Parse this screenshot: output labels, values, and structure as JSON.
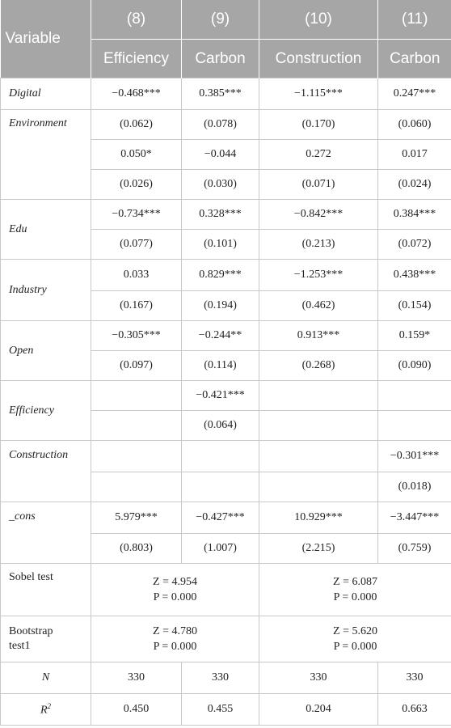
{
  "header": {
    "variable_label": "Variable",
    "cols": [
      "(8)",
      "(9)",
      "(10)",
      "(11)"
    ],
    "subcols": [
      "Efficiency",
      "Carbon",
      "Construction",
      "Carbon"
    ]
  },
  "rows": {
    "digital": {
      "name": "Digital",
      "values": [
        "−0.468***",
        "0.385***",
        "−1.115***",
        "0.247***"
      ]
    },
    "environment": {
      "name": "Environment",
      "se": [
        "(0.062)",
        "(0.078)",
        "(0.170)",
        "(0.060)"
      ],
      "values": [
        "0.050*",
        "−0.044",
        "0.272",
        "0.017"
      ],
      "se2": [
        "(0.026)",
        "(0.030)",
        "(0.071)",
        "(0.024)"
      ]
    },
    "edu": {
      "name": "Edu",
      "values": [
        "−0.734***",
        "0.328***",
        "−0.842***",
        "0.384***"
      ],
      "se": [
        "(0.077)",
        "(0.101)",
        "(0.213)",
        "(0.072)"
      ]
    },
    "industry": {
      "name": "Industry",
      "values": [
        "0.033",
        "0.829***",
        "−1.253***",
        "0.438***"
      ],
      "se": [
        "(0.167)",
        "(0.194)",
        "(0.462)",
        "(0.154)"
      ]
    },
    "open": {
      "name": "Open",
      "values": [
        "−0.305***",
        "−0.244**",
        "0.913***",
        "0.159*"
      ],
      "se": [
        "(0.097)",
        "(0.114)",
        "(0.268)",
        "(0.090)"
      ]
    },
    "efficiency": {
      "name": "Efficiency",
      "value": "−0.421***",
      "se": "(0.064)"
    },
    "construction": {
      "name": "Construction",
      "value": "−0.301***",
      "se": "(0.018)"
    },
    "cons": {
      "name": "_cons",
      "values": [
        "5.979***",
        "−0.427***",
        "10.929***",
        "−3.447***"
      ],
      "se": [
        "(0.803)",
        "(1.007)",
        "(2.215)",
        "(0.759)"
      ]
    },
    "sobel": {
      "name": "Sobel test",
      "left_z": "Z = 4.954",
      "left_p": "P = 0.000",
      "right_z": "Z = 6.087",
      "right_p": "P = 0.000"
    },
    "bootstrap": {
      "name_line1": "Bootstrap",
      "name_line2": "test1",
      "left_z": "Z = 4.780",
      "left_p": "P = 0.000",
      "right_z": "Z = 5.620",
      "right_p": "P = 0.000"
    },
    "n": {
      "name": "N",
      "values": [
        "330",
        "330",
        "330",
        "330"
      ]
    },
    "r2": {
      "name": "R",
      "sup": "2",
      "values": [
        "0.450",
        "0.455",
        "0.204",
        "0.663"
      ]
    }
  }
}
